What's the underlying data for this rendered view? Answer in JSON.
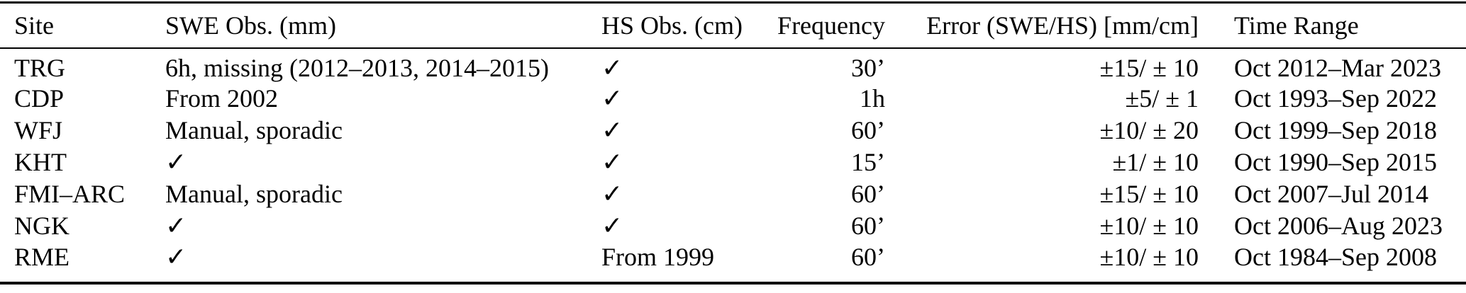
{
  "colors": {
    "text": "#000000",
    "rule": "#000000",
    "background": "#ffffff"
  },
  "table": {
    "columns": [
      {
        "label": "Site"
      },
      {
        "label": "SWE Obs. (mm)"
      },
      {
        "label": "HS Obs. (cm)"
      },
      {
        "label": "Frequency"
      },
      {
        "label": "Error (SWE/HS) [mm/cm]"
      },
      {
        "label": "Time Range"
      }
    ],
    "checkmark_glyph": "✓",
    "rows": [
      {
        "site": "TRG",
        "swe_obs": "6h, missing (2012–2013, 2014–2015)",
        "hs_obs": "✓",
        "frequency": "30’",
        "error": "±15/ ± 10",
        "time_range": "Oct 2012–Mar 2023"
      },
      {
        "site": "CDP",
        "swe_obs": "From 2002",
        "hs_obs": "✓",
        "frequency": "1h",
        "error": "±5/ ± 1",
        "time_range": "Oct 1993–Sep 2022"
      },
      {
        "site": "WFJ",
        "swe_obs": "Manual, sporadic",
        "hs_obs": "✓",
        "frequency": "60’",
        "error": "±10/ ± 20",
        "time_range": "Oct 1999–Sep 2018"
      },
      {
        "site": "KHT",
        "swe_obs": "✓",
        "hs_obs": "✓",
        "frequency": "15’",
        "error": "±1/ ± 10",
        "time_range": "Oct 1990–Sep 2015"
      },
      {
        "site": "FMI–ARC",
        "swe_obs": "Manual, sporadic",
        "hs_obs": "✓",
        "frequency": "60’",
        "error": "±15/ ± 10",
        "time_range": "Oct 2007–Jul 2014"
      },
      {
        "site": "NGK",
        "swe_obs": "✓",
        "hs_obs": "✓",
        "frequency": "60’",
        "error": "±10/ ± 10",
        "time_range": "Oct 2006–Aug 2023"
      },
      {
        "site": "RME",
        "swe_obs": "✓",
        "hs_obs": "From 1999",
        "frequency": "60’",
        "error": "±10/ ± 10",
        "time_range": "Oct 1984–Sep 2008"
      }
    ]
  }
}
